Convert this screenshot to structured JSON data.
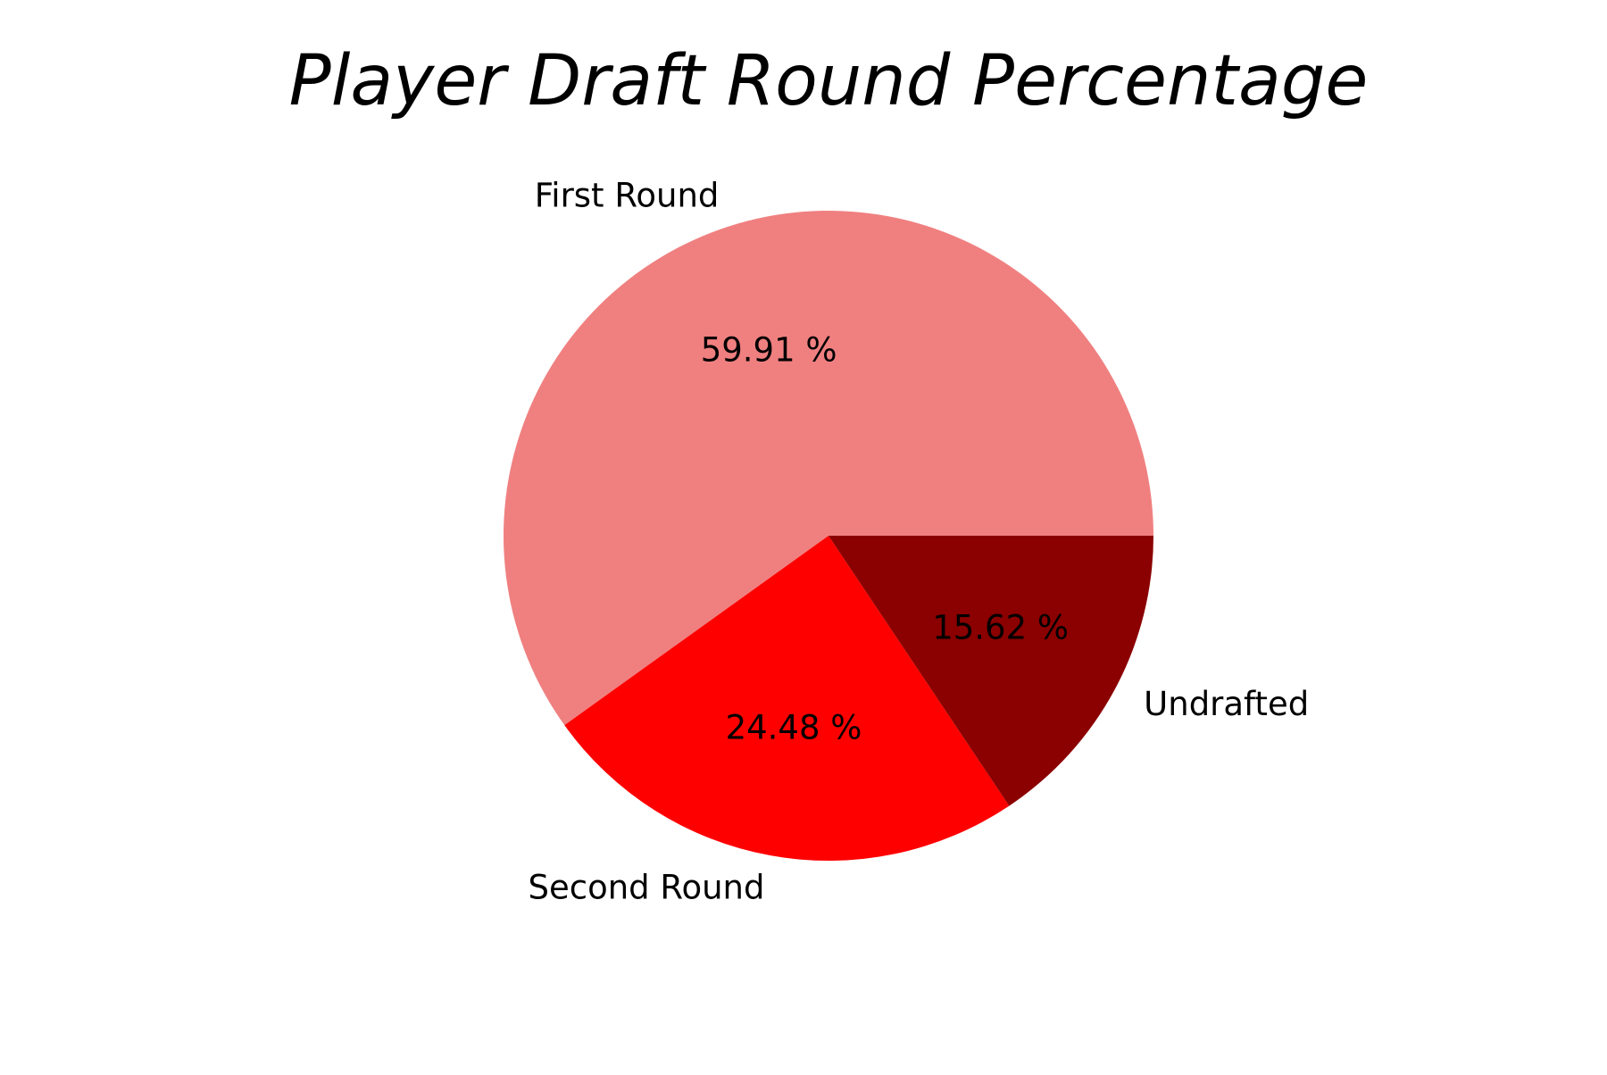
{
  "chart_data": {
    "type": "pie",
    "title": "Player Draft Round Percentage",
    "start_angle_deg": 0,
    "direction": "counterclockwise",
    "slices": [
      {
        "label": "First Round",
        "value": 59.91,
        "pct_label": "59.91 %",
        "color": "#F08080"
      },
      {
        "label": "Second Round",
        "value": 24.48,
        "pct_label": "24.48 %",
        "color": "#FF0000"
      },
      {
        "label": "Undrafted",
        "value": 15.62,
        "pct_label": "15.62 %",
        "color": "#8B0000"
      }
    ]
  }
}
